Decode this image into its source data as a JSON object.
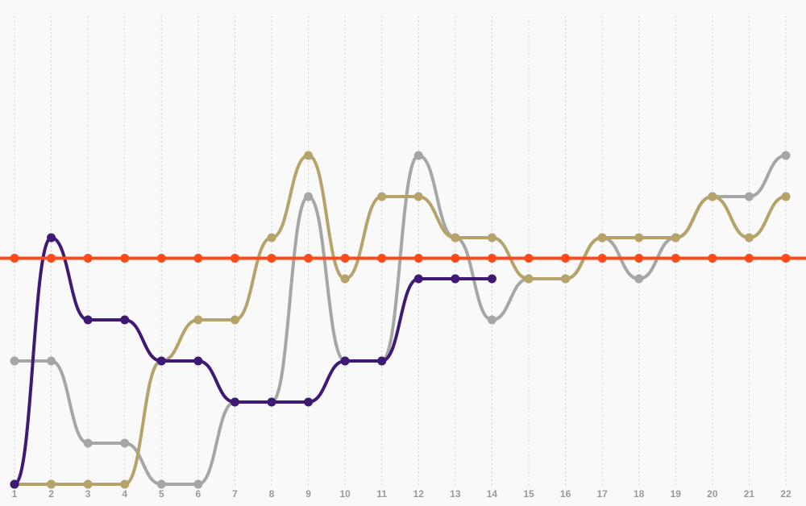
{
  "chart_data": {
    "type": "line",
    "categories": [
      "1",
      "2",
      "3",
      "4",
      "5",
      "6",
      "7",
      "8",
      "9",
      "10",
      "11",
      "12",
      "13",
      "14",
      "15",
      "16",
      "17",
      "18",
      "19",
      "20",
      "21",
      "22"
    ],
    "ylim": [
      0,
      11
    ],
    "grid": true,
    "series": [
      {
        "name": "gray",
        "color": "#a6a6a6",
        "values": [
          3,
          3,
          1,
          1,
          0,
          0,
          2,
          2,
          7,
          3,
          3,
          8,
          6,
          4,
          5,
          5,
          6,
          5,
          6,
          7,
          7,
          8
        ]
      },
      {
        "name": "gold",
        "color": "#b5a36a",
        "values": [
          0,
          0,
          0,
          0,
          3,
          4,
          4,
          6,
          8,
          5,
          7,
          7,
          6,
          6,
          5,
          5,
          6,
          6,
          6,
          7,
          6,
          7
        ]
      },
      {
        "name": "purple",
        "color": "#3f1a74",
        "values": [
          0,
          6,
          4,
          4,
          3,
          3,
          2,
          2,
          2,
          3,
          3,
          5,
          5,
          5,
          null,
          null,
          null,
          null,
          null,
          null,
          null,
          null
        ]
      },
      {
        "name": "red",
        "color": "#fc4a1a",
        "values": [
          5.5,
          5.5,
          5.5,
          5.5,
          5.5,
          5.5,
          5.5,
          5.5,
          5.5,
          5.5,
          5.5,
          5.5,
          5.5,
          5.5,
          5.5,
          5.5,
          5.5,
          5.5,
          5.5,
          5.5,
          5.5,
          5.5
        ]
      }
    ]
  }
}
